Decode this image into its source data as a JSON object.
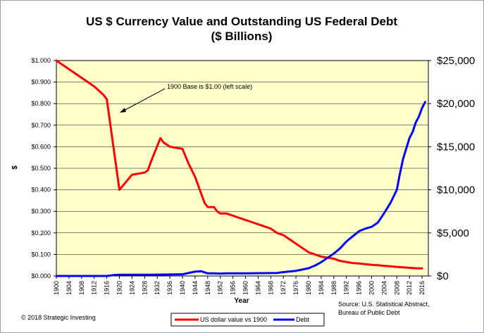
{
  "chart_data": {
    "type": "line",
    "title": "US $ Currency Value and Outstanding US Federal Debt",
    "subtitle": "($ Billions)",
    "xlabel": "Year",
    "ylabel_left": "$",
    "xlim": [
      1900,
      2018
    ],
    "ylim_left": [
      0,
      1
    ],
    "ylim_right": [
      0,
      25000
    ],
    "grid": true,
    "legend_position": "bottom",
    "x_ticks": [
      1900,
      1904,
      1908,
      1912,
      1916,
      1920,
      1924,
      1928,
      1932,
      1936,
      1940,
      1944,
      1948,
      1952,
      1956,
      1960,
      1964,
      1968,
      1972,
      1976,
      1980,
      1984,
      1988,
      1992,
      1996,
      2000,
      2004,
      2008,
      2012,
      2016
    ],
    "left_ticks": [
      "$0.000",
      "$0.100",
      "$0.200",
      "$0.300",
      "$0.400",
      "$0.500",
      "$0.600",
      "$0.700",
      "$0.800",
      "$0.900",
      "$1.000"
    ],
    "right_ticks": [
      "$0",
      "$5,000",
      "$10,000",
      "$15,000",
      "$20,000",
      "$25,000"
    ],
    "series": [
      {
        "name": "US dollar value vs 1900",
        "axis": "left",
        "color": "#ff0000",
        "x": [
          1900,
          1904,
          1908,
          1912,
          1915,
          1916,
          1920,
          1924,
          1928,
          1929,
          1930,
          1933,
          1934,
          1936,
          1940,
          1942,
          1944,
          1945,
          1946,
          1947,
          1948,
          1950,
          1951,
          1952,
          1954,
          1956,
          1958,
          1960,
          1962,
          1964,
          1966,
          1968,
          1970,
          1972,
          1974,
          1976,
          1978,
          1980,
          1982,
          1984,
          1986,
          1988,
          1990,
          1992,
          1994,
          1996,
          1998,
          2000,
          2002,
          2004,
          2006,
          2008,
          2010,
          2012,
          2014,
          2016
        ],
        "y": [
          1.0,
          0.96,
          0.92,
          0.88,
          0.84,
          0.82,
          0.4,
          0.47,
          0.48,
          0.49,
          0.53,
          0.64,
          0.62,
          0.6,
          0.59,
          0.52,
          0.46,
          0.42,
          0.38,
          0.34,
          0.32,
          0.32,
          0.3,
          0.29,
          0.29,
          0.28,
          0.27,
          0.26,
          0.25,
          0.24,
          0.23,
          0.22,
          0.2,
          0.19,
          0.17,
          0.15,
          0.13,
          0.11,
          0.1,
          0.09,
          0.085,
          0.08,
          0.07,
          0.065,
          0.06,
          0.058,
          0.055,
          0.052,
          0.05,
          0.047,
          0.045,
          0.042,
          0.04,
          0.038,
          0.036,
          0.035
        ]
      },
      {
        "name": "Debt",
        "axis": "right",
        "color": "#0000ff",
        "x": [
          1900,
          1910,
          1916,
          1918,
          1920,
          1930,
          1940,
          1944,
          1946,
          1948,
          1950,
          1952,
          1954,
          1960,
          1970,
          1972,
          1976,
          1980,
          1982,
          1984,
          1986,
          1988,
          1990,
          1992,
          1994,
          1996,
          1998,
          2000,
          2002,
          2004,
          2006,
          2008,
          2009,
          2010,
          2011,
          2012,
          2013,
          2014,
          2015,
          2016,
          2017
        ],
        "y": [
          0,
          0,
          0,
          100,
          150,
          150,
          200,
          500,
          550,
          300,
          300,
          280,
          300,
          300,
          350,
          450,
          600,
          900,
          1200,
          1600,
          2100,
          2600,
          3200,
          4000,
          4600,
          5200,
          5500,
          5700,
          6200,
          7300,
          8500,
          10000,
          11900,
          13600,
          14800,
          16000,
          16700,
          17800,
          18500,
          19500,
          20200
        ]
      }
    ],
    "annotation": "1900 Base is $1.00 (left scale)",
    "source": [
      "Source: U.S. Statistical Abstract,",
      "Bureau of Public Debt"
    ],
    "copyright": "© 2018 Strategic Investing"
  }
}
